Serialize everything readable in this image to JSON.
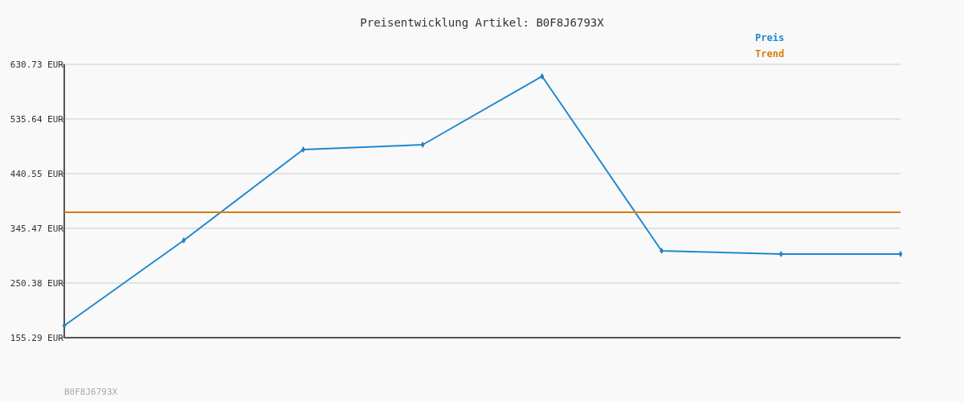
{
  "chart_data": {
    "type": "line",
    "title": "Preisentwicklung Artikel: B0F8J6793X",
    "categories": [
      null,
      null,
      null,
      null,
      null,
      null,
      null,
      null
    ],
    "series": [
      {
        "name": "Preis",
        "color": "#1f88d0",
        "values": [
          176.3,
          324.5,
          482.5,
          490.9,
          609.8,
          306.3,
          300.7,
          300.7
        ],
        "marker": "diamond"
      },
      {
        "name": "Trend",
        "color": "#d97b0a",
        "values": [
          373.4,
          373.4,
          373.4,
          373.4,
          373.4,
          373.4,
          373.4,
          373.4
        ],
        "marker": "none"
      }
    ],
    "ylim": [
      155.29,
      630.73
    ],
    "yticks": [
      {
        "value": 155.29,
        "label": "155.29 EUR"
      },
      {
        "value": 250.38,
        "label": "250.38 EUR"
      },
      {
        "value": 345.47,
        "label": "345.47 EUR"
      },
      {
        "value": 440.55,
        "label": "440.55 EUR"
      },
      {
        "value": 535.64,
        "label": "535.64 EUR"
      },
      {
        "value": 630.73,
        "label": "630.73 EUR"
      }
    ],
    "grid": "y",
    "legend": "top right",
    "annotations": [
      "B0F8J6793X"
    ]
  }
}
